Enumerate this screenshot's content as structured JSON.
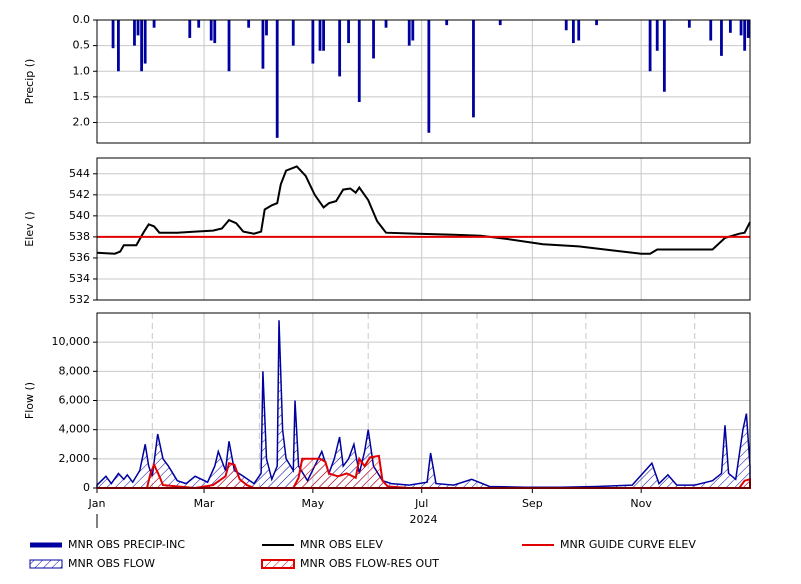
{
  "chart_data": [
    {
      "type": "bar",
      "y_label": "Precip ()",
      "ylim": [
        0,
        2.4
      ],
      "inverted": true,
      "yticks": [
        {
          "value": 0,
          "label": "0.0"
        },
        {
          "value": 0.5,
          "label": "0.5"
        },
        {
          "value": 1,
          "label": "1.0"
        },
        {
          "value": 1.5,
          "label": "1.5"
        },
        {
          "value": 2,
          "label": "2.0"
        }
      ],
      "xlim": [
        0,
        366
      ],
      "xgrid": [
        60,
        121,
        182,
        244,
        305
      ],
      "grid": true,
      "series": [
        {
          "name": "MNR OBS PRECIP-INC",
          "color": "#0000a0",
          "x": [
            9,
            12,
            21,
            23,
            25,
            27,
            32,
            52,
            57,
            64,
            66,
            74,
            85,
            93,
            95,
            101,
            110,
            121,
            125,
            127,
            136,
            141,
            147,
            155,
            162,
            175,
            177,
            186,
            196,
            211,
            226,
            263,
            267,
            270,
            280,
            310,
            314,
            318,
            332,
            344,
            350,
            355,
            361,
            363,
            365
          ],
          "values": [
            0.55,
            1.0,
            0.5,
            0.3,
            1.0,
            0.85,
            0.15,
            0.35,
            0.15,
            0.4,
            0.45,
            1.0,
            0.15,
            0.95,
            0.3,
            2.3,
            0.5,
            0.85,
            0.6,
            0.6,
            1.1,
            0.45,
            1.6,
            0.75,
            0.15,
            0.5,
            0.4,
            2.2,
            0.1,
            1.9,
            0.1,
            0.2,
            0.45,
            0.4,
            0.1,
            1.0,
            0.6,
            1.4,
            0.15,
            0.4,
            0.7,
            0.25,
            0.3,
            0.6,
            0.35
          ]
        }
      ]
    },
    {
      "type": "line",
      "y_label": "Elev ()",
      "ylim": [
        532,
        545.5
      ],
      "yticks": [
        532,
        534,
        536,
        538,
        540,
        542,
        544
      ],
      "xlim": [
        0,
        366
      ],
      "xgrid": [
        60,
        121,
        182,
        244,
        305
      ],
      "grid": true,
      "series": [
        {
          "name": "MNR OBS ELEV",
          "color": "#000000",
          "x": [
            0,
            10,
            13,
            15,
            22,
            26,
            29,
            32,
            35,
            45,
            55,
            65,
            70,
            74,
            78,
            82,
            88,
            92,
            94,
            98,
            101,
            103,
            106,
            112,
            117,
            122,
            127,
            130,
            134,
            138,
            142,
            145,
            147,
            152,
            157,
            162,
            180,
            200,
            215,
            230,
            250,
            270,
            290,
            305,
            310,
            314,
            325,
            345,
            352,
            360,
            363,
            366
          ],
          "values": [
            536.5,
            536.4,
            536.6,
            537.2,
            537.2,
            538.4,
            539.2,
            539.0,
            538.4,
            538.4,
            538.5,
            538.6,
            538.8,
            539.6,
            539.3,
            538.5,
            538.3,
            538.5,
            540.6,
            541.0,
            541.2,
            543.0,
            544.3,
            544.7,
            543.8,
            542.0,
            540.8,
            541.2,
            541.4,
            542.5,
            542.6,
            542.2,
            542.7,
            541.5,
            539.5,
            538.4,
            538.3,
            538.2,
            538.1,
            537.8,
            537.3,
            537.1,
            536.7,
            536.4,
            536.4,
            536.8,
            536.8,
            536.8,
            537.9,
            538.3,
            538.4,
            539.4
          ]
        },
        {
          "name": "MNR GUIDE CURVE ELEV",
          "color": "#e00000",
          "x": [
            0,
            366
          ],
          "values": [
            538,
            538
          ]
        }
      ]
    },
    {
      "type": "area",
      "y_label": "Flow ()",
      "ylim": [
        0,
        12000
      ],
      "yticks": [
        0,
        {
          "value": 2000,
          "label": "2,000"
        },
        {
          "value": 4000,
          "label": "4,000"
        },
        {
          "value": 6000,
          "label": "6,000"
        },
        {
          "value": 8000,
          "label": "8,000"
        },
        {
          "value": 10000,
          "label": "10,000"
        }
      ],
      "xlim": [
        0,
        366
      ],
      "grid": true,
      "xticks": [
        {
          "value": 0,
          "label": "Jan"
        },
        {
          "value": 60,
          "label": "Mar"
        },
        {
          "value": 121,
          "label": "May"
        },
        {
          "value": 182,
          "label": "Jul"
        },
        {
          "value": 244,
          "label": "Sep"
        },
        {
          "value": 305,
          "label": "Nov"
        }
      ],
      "minor_xgrid": [
        31,
        91,
        152,
        213,
        274,
        335
      ],
      "x_label": "2024",
      "series": [
        {
          "name": "MNR OBS FLOW",
          "color": "#0000a0",
          "x": [
            0,
            5,
            8,
            12,
            15,
            17,
            20,
            24,
            27,
            29,
            31,
            34,
            37,
            40,
            45,
            50,
            55,
            62,
            66,
            68,
            72,
            74,
            77,
            82,
            88,
            92,
            93,
            95,
            98,
            101,
            102,
            104,
            106,
            110,
            111,
            113,
            118,
            122,
            126,
            130,
            133,
            136,
            138,
            141,
            144,
            147,
            150,
            152,
            155,
            160,
            165,
            175,
            185,
            187,
            190,
            200,
            210,
            220,
            240,
            260,
            280,
            300,
            311,
            315,
            320,
            325,
            335,
            345,
            350,
            352,
            354,
            358,
            362,
            364,
            366
          ],
          "values": [
            200,
            800,
            300,
            1000,
            600,
            900,
            400,
            1200,
            3000,
            1500,
            800,
            3700,
            2000,
            1500,
            500,
            300,
            800,
            400,
            1500,
            2500,
            1200,
            3200,
            1200,
            800,
            300,
            1000,
            8000,
            2000,
            600,
            1500,
            11500,
            4000,
            2000,
            1200,
            6000,
            1500,
            500,
            1500,
            2500,
            1000,
            2000,
            3500,
            1500,
            2000,
            3000,
            1000,
            2500,
            4000,
            1500,
            500,
            300,
            200,
            400,
            2400,
            300,
            200,
            600,
            100,
            50,
            50,
            100,
            200,
            1700,
            300,
            900,
            200,
            200,
            500,
            1000,
            4300,
            1000,
            600,
            4000,
            5100,
            1500
          ]
        },
        {
          "name": "MNR OBS FLOW-RES OUT",
          "color": "#e00000",
          "x": [
            0,
            28,
            30,
            32,
            35,
            37,
            55,
            65,
            72,
            74,
            77,
            80,
            84,
            88,
            110,
            113,
            115,
            125,
            128,
            130,
            135,
            140,
            145,
            147,
            150,
            153,
            158,
            160,
            163,
            175,
            360,
            363,
            366
          ],
          "values": [
            0,
            0,
            1000,
            1600,
            800,
            200,
            0,
            200,
            800,
            1700,
            1600,
            600,
            200,
            0,
            0,
            700,
            2000,
            2000,
            1800,
            1000,
            800,
            1000,
            700,
            2000,
            1500,
            2100,
            2200,
            500,
            100,
            0,
            0,
            500,
            600
          ]
        }
      ]
    }
  ]
}
